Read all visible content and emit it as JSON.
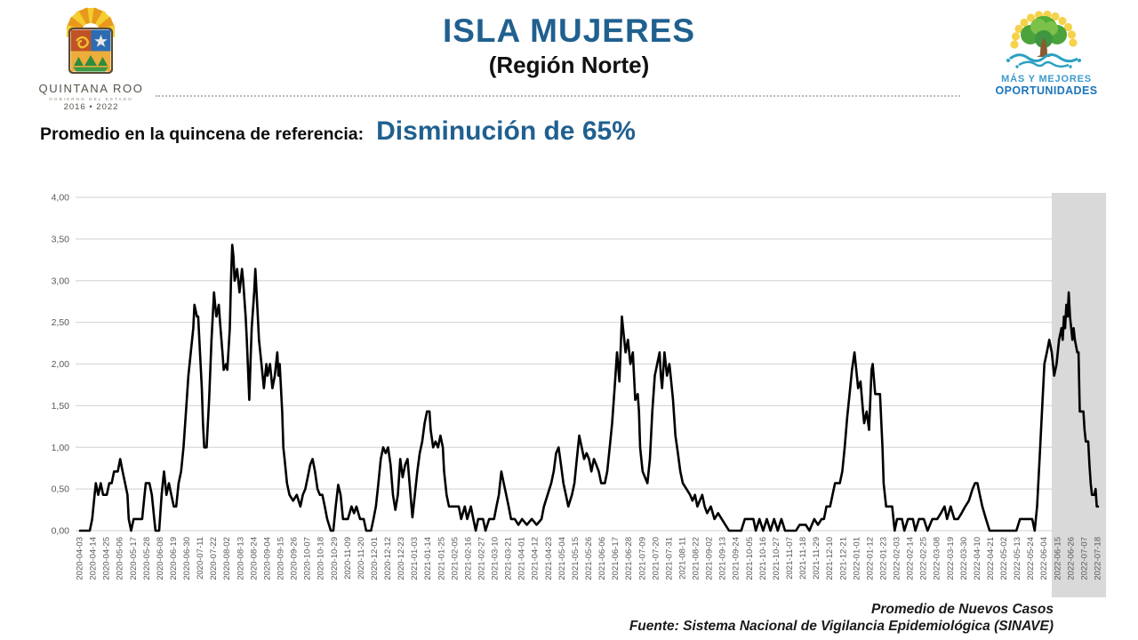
{
  "header": {
    "title": "ISLA MUJERES",
    "subtitle": "(Región Norte)",
    "left_logo": {
      "name": "Quintana Roo state coat of arms",
      "line1": "QUINTANA ROO",
      "line2": "GOBIERNO DEL ESTADO",
      "line3": "2016 • 2022"
    },
    "right_logo": {
      "name": "Mas y Mejores Oportunidades tree logo",
      "line1": "MÁS Y MEJORES",
      "line2": "OPORTUNIDADES"
    }
  },
  "summary": {
    "label": "Promedio en la quincena de referencia:",
    "value": "Disminución de 65%"
  },
  "footer": {
    "line1": "Promedio de Nuevos Casos",
    "line2": "Fuente: Sistema Nacional de Vigilancia Epidemiológica (SINAVE)"
  },
  "colors": {
    "title_blue": "#20608F",
    "accent_blue": "#20608F",
    "axis_text": "#595959",
    "gridline": "#D9D9D9",
    "band": "#D9D9D9",
    "line": "#000000"
  },
  "chart_data": {
    "type": "line",
    "title": "Promedio de Nuevos Casos",
    "xlabel": "",
    "ylabel": "",
    "ylim": [
      0,
      4
    ],
    "grid": "horizontal",
    "legend": "none",
    "x_unit": "days since 2020-04-03",
    "x_tick_interval_days": 11,
    "y_ticks": [
      "0,00",
      "0,50",
      "1,00",
      "1,50",
      "2,00",
      "2,50",
      "3,00",
      "3,50",
      "4,00"
    ],
    "highlight_band": {
      "start_day": 798,
      "end_day": 839,
      "meaning": "quincena de referencia"
    },
    "x_tick_labels": [
      "2020-04-03",
      "2020-04-14",
      "2020-04-25",
      "2020-05-06",
      "2020-05-17",
      "2020-05-28",
      "2020-06-08",
      "2020-06-19",
      "2020-06-30",
      "2020-07-11",
      "2020-07-22",
      "2020-08-02",
      "2020-08-13",
      "2020-08-24",
      "2020-09-04",
      "2020-09-15",
      "2020-09-26",
      "2020-10-07",
      "2020-10-18",
      "2020-10-29",
      "2020-11-09",
      "2020-11-20",
      "2020-12-01",
      "2020-12-12",
      "2020-12-23",
      "2021-01-03",
      "2021-01-14",
      "2021-01-25",
      "2021-02-05",
      "2021-02-16",
      "2021-02-27",
      "2021-03-10",
      "2021-03-21",
      "2021-04-01",
      "2021-04-12",
      "2021-04-23",
      "2021-05-04",
      "2021-05-15",
      "2021-05-26",
      "2021-06-06",
      "2021-06-17",
      "2021-06-28",
      "2021-07-09",
      "2021-07-20",
      "2021-07-31",
      "2021-08-11",
      "2021-08-22",
      "2021-09-02",
      "2021-09-13",
      "2021-09-24",
      "2021-10-05",
      "2021-10-16",
      "2021-10-27",
      "2021-11-07",
      "2021-11-18",
      "2021-11-29",
      "2021-12-10",
      "2021-12-21",
      "2022-01-01",
      "2022-01-12",
      "2022-01-23",
      "2022-02-03",
      "2022-02-14",
      "2022-02-25",
      "2022-03-08",
      "2022-03-19",
      "2022-03-30",
      "2022-04-10",
      "2022-04-21",
      "2022-05-02",
      "2022-05-13",
      "2022-05-24",
      "2022-06-04",
      "2022-06-15",
      "2022-06-26",
      "2022-07-07",
      "2022-07-18"
    ],
    "points": [
      [
        0,
        0
      ],
      [
        8,
        0
      ],
      [
        10,
        0.14
      ],
      [
        12,
        0.43
      ],
      [
        13,
        0.57
      ],
      [
        15,
        0.43
      ],
      [
        17,
        0.57
      ],
      [
        19,
        0.43
      ],
      [
        22,
        0.43
      ],
      [
        24,
        0.57
      ],
      [
        26,
        0.57
      ],
      [
        28,
        0.71
      ],
      [
        31,
        0.71
      ],
      [
        33,
        0.86
      ],
      [
        35,
        0.71
      ],
      [
        37,
        0.57
      ],
      [
        39,
        0.43
      ],
      [
        40,
        0.14
      ],
      [
        42,
        0
      ],
      [
        44,
        0.14
      ],
      [
        51,
        0.14
      ],
      [
        53,
        0.43
      ],
      [
        54,
        0.57
      ],
      [
        57,
        0.57
      ],
      [
        59,
        0.43
      ],
      [
        61,
        0.14
      ],
      [
        62,
        0
      ],
      [
        65,
        0
      ],
      [
        67,
        0.43
      ],
      [
        68,
        0.57
      ],
      [
        69,
        0.71
      ],
      [
        71,
        0.43
      ],
      [
        73,
        0.57
      ],
      [
        75,
        0.43
      ],
      [
        77,
        0.29
      ],
      [
        79,
        0.29
      ],
      [
        81,
        0.57
      ],
      [
        83,
        0.71
      ],
      [
        85,
        1.0
      ],
      [
        87,
        1.43
      ],
      [
        89,
        1.86
      ],
      [
        91,
        2.14
      ],
      [
        93,
        2.43
      ],
      [
        94,
        2.71
      ],
      [
        96,
        2.57
      ],
      [
        97,
        2.57
      ],
      [
        99,
        2.0
      ],
      [
        100,
        1.71
      ],
      [
        101,
        1.29
      ],
      [
        102,
        1.0
      ],
      [
        104,
        1.0
      ],
      [
        106,
        1.57
      ],
      [
        108,
        2.29
      ],
      [
        110,
        2.86
      ],
      [
        111,
        2.71
      ],
      [
        112,
        2.57
      ],
      [
        114,
        2.71
      ],
      [
        115,
        2.5
      ],
      [
        117,
        2.14
      ],
      [
        118,
        1.93
      ],
      [
        120,
        2.0
      ],
      [
        121,
        1.93
      ],
      [
        123,
        2.43
      ],
      [
        124,
        3.0
      ],
      [
        125,
        3.43
      ],
      [
        126,
        3.29
      ],
      [
        127,
        3.0
      ],
      [
        129,
        3.14
      ],
      [
        130,
        3.0
      ],
      [
        131,
        2.86
      ],
      [
        133,
        3.14
      ],
      [
        134,
        3.0
      ],
      [
        136,
        2.57
      ],
      [
        137,
        2.29
      ],
      [
        139,
        1.57
      ],
      [
        140,
        2.0
      ],
      [
        141,
        2.43
      ],
      [
        143,
        2.86
      ],
      [
        144,
        3.14
      ],
      [
        145,
        2.86
      ],
      [
        146,
        2.57
      ],
      [
        147,
        2.29
      ],
      [
        149,
        2.0
      ],
      [
        151,
        1.71
      ],
      [
        153,
        2.0
      ],
      [
        154,
        1.86
      ],
      [
        156,
        2.0
      ],
      [
        158,
        1.71
      ],
      [
        160,
        1.86
      ],
      [
        162,
        2.14
      ],
      [
        163,
        1.86
      ],
      [
        164,
        2.0
      ],
      [
        166,
        1.43
      ],
      [
        167,
        1.0
      ],
      [
        168,
        0.86
      ],
      [
        170,
        0.57
      ],
      [
        172,
        0.43
      ],
      [
        175,
        0.36
      ],
      [
        178,
        0.43
      ],
      [
        181,
        0.29
      ],
      [
        183,
        0.43
      ],
      [
        185,
        0.5
      ],
      [
        187,
        0.64
      ],
      [
        189,
        0.79
      ],
      [
        191,
        0.86
      ],
      [
        193,
        0.71
      ],
      [
        195,
        0.5
      ],
      [
        197,
        0.43
      ],
      [
        199,
        0.43
      ],
      [
        201,
        0.29
      ],
      [
        203,
        0.14
      ],
      [
        206,
        0
      ],
      [
        208,
        0
      ],
      [
        210,
        0.29
      ],
      [
        212,
        0.55
      ],
      [
        214,
        0.43
      ],
      [
        216,
        0.14
      ],
      [
        220,
        0.14
      ],
      [
        223,
        0.29
      ],
      [
        225,
        0.21
      ],
      [
        227,
        0.29
      ],
      [
        230,
        0.14
      ],
      [
        233,
        0.14
      ],
      [
        235,
        0
      ],
      [
        239,
        0
      ],
      [
        241,
        0.14
      ],
      [
        243,
        0.29
      ],
      [
        245,
        0.57
      ],
      [
        247,
        0.86
      ],
      [
        249,
        1.0
      ],
      [
        251,
        0.93
      ],
      [
        253,
        1.0
      ],
      [
        255,
        0.79
      ],
      [
        257,
        0.43
      ],
      [
        259,
        0.25
      ],
      [
        261,
        0.43
      ],
      [
        263,
        0.86
      ],
      [
        265,
        0.64
      ],
      [
        267,
        0.79
      ],
      [
        269,
        0.86
      ],
      [
        271,
        0.5
      ],
      [
        273,
        0.16
      ],
      [
        275,
        0.43
      ],
      [
        277,
        0.71
      ],
      [
        279,
        0.93
      ],
      [
        281,
        1.07
      ],
      [
        283,
        1.29
      ],
      [
        285,
        1.43
      ],
      [
        287,
        1.43
      ],
      [
        288,
        1.21
      ],
      [
        290,
        1.0
      ],
      [
        292,
        1.07
      ],
      [
        294,
        1.0
      ],
      [
        296,
        1.14
      ],
      [
        298,
        1.0
      ],
      [
        299,
        0.71
      ],
      [
        301,
        0.43
      ],
      [
        303,
        0.29
      ],
      [
        308,
        0.29
      ],
      [
        311,
        0.29
      ],
      [
        313,
        0.14
      ],
      [
        316,
        0.29
      ],
      [
        318,
        0.14
      ],
      [
        321,
        0.29
      ],
      [
        323,
        0.14
      ],
      [
        325,
        0
      ],
      [
        327,
        0.14
      ],
      [
        331,
        0.14
      ],
      [
        333,
        0
      ],
      [
        336,
        0.14
      ],
      [
        340,
        0.14
      ],
      [
        342,
        0.29
      ],
      [
        344,
        0.43
      ],
      [
        346,
        0.71
      ],
      [
        348,
        0.57
      ],
      [
        350,
        0.43
      ],
      [
        352,
        0.29
      ],
      [
        354,
        0.14
      ],
      [
        357,
        0.14
      ],
      [
        360,
        0.07
      ],
      [
        363,
        0.14
      ],
      [
        367,
        0.07
      ],
      [
        371,
        0.14
      ],
      [
        375,
        0.07
      ],
      [
        379,
        0.14
      ],
      [
        381,
        0.29
      ],
      [
        384,
        0.43
      ],
      [
        387,
        0.57
      ],
      [
        389,
        0.71
      ],
      [
        391,
        0.93
      ],
      [
        393,
        1.0
      ],
      [
        395,
        0.79
      ],
      [
        397,
        0.57
      ],
      [
        399,
        0.43
      ],
      [
        401,
        0.29
      ],
      [
        404,
        0.43
      ],
      [
        406,
        0.57
      ],
      [
        408,
        0.86
      ],
      [
        410,
        1.14
      ],
      [
        412,
        1.0
      ],
      [
        414,
        0.86
      ],
      [
        416,
        0.93
      ],
      [
        418,
        0.86
      ],
      [
        420,
        0.71
      ],
      [
        422,
        0.86
      ],
      [
        424,
        0.79
      ],
      [
        426,
        0.71
      ],
      [
        428,
        0.57
      ],
      [
        431,
        0.57
      ],
      [
        433,
        0.71
      ],
      [
        435,
        1.0
      ],
      [
        437,
        1.29
      ],
      [
        439,
        1.71
      ],
      [
        441,
        2.14
      ],
      [
        443,
        1.79
      ],
      [
        445,
        2.57
      ],
      [
        446,
        2.43
      ],
      [
        448,
        2.14
      ],
      [
        450,
        2.29
      ],
      [
        451,
        2.14
      ],
      [
        452,
        2.0
      ],
      [
        454,
        2.14
      ],
      [
        456,
        1.57
      ],
      [
        458,
        1.64
      ],
      [
        459,
        1.43
      ],
      [
        460,
        1.0
      ],
      [
        462,
        0.71
      ],
      [
        464,
        0.64
      ],
      [
        466,
        0.57
      ],
      [
        468,
        0.86
      ],
      [
        470,
        1.43
      ],
      [
        472,
        1.86
      ],
      [
        474,
        2.0
      ],
      [
        476,
        2.14
      ],
      [
        477,
        1.86
      ],
      [
        478,
        1.71
      ],
      [
        480,
        2.14
      ],
      [
        482,
        1.86
      ],
      [
        484,
        2.0
      ],
      [
        485,
        1.86
      ],
      [
        487,
        1.57
      ],
      [
        489,
        1.14
      ],
      [
        491,
        0.93
      ],
      [
        493,
        0.71
      ],
      [
        495,
        0.57
      ],
      [
        498,
        0.5
      ],
      [
        501,
        0.43
      ],
      [
        503,
        0.36
      ],
      [
        505,
        0.43
      ],
      [
        507,
        0.29
      ],
      [
        509,
        0.36
      ],
      [
        511,
        0.43
      ],
      [
        513,
        0.29
      ],
      [
        515,
        0.21
      ],
      [
        518,
        0.29
      ],
      [
        521,
        0.14
      ],
      [
        524,
        0.21
      ],
      [
        527,
        0.14
      ],
      [
        530,
        0.07
      ],
      [
        533,
        0
      ],
      [
        543,
        0
      ],
      [
        546,
        0.14
      ],
      [
        553,
        0.14
      ],
      [
        555,
        0
      ],
      [
        558,
        0.14
      ],
      [
        561,
        0
      ],
      [
        564,
        0.14
      ],
      [
        567,
        0
      ],
      [
        570,
        0.14
      ],
      [
        573,
        0
      ],
      [
        576,
        0.14
      ],
      [
        579,
        0
      ],
      [
        588,
        0
      ],
      [
        591,
        0.07
      ],
      [
        596,
        0.07
      ],
      [
        599,
        0
      ],
      [
        603,
        0.14
      ],
      [
        606,
        0.07
      ],
      [
        609,
        0.14
      ],
      [
        611,
        0.14
      ],
      [
        613,
        0.29
      ],
      [
        616,
        0.29
      ],
      [
        618,
        0.43
      ],
      [
        620,
        0.57
      ],
      [
        624,
        0.57
      ],
      [
        626,
        0.71
      ],
      [
        628,
        1.0
      ],
      [
        630,
        1.36
      ],
      [
        632,
        1.64
      ],
      [
        634,
        1.93
      ],
      [
        636,
        2.14
      ],
      [
        638,
        1.86
      ],
      [
        639,
        1.71
      ],
      [
        641,
        1.79
      ],
      [
        643,
        1.43
      ],
      [
        644,
        1.29
      ],
      [
        646,
        1.43
      ],
      [
        648,
        1.21
      ],
      [
        650,
        1.93
      ],
      [
        651,
        2.0
      ],
      [
        653,
        1.64
      ],
      [
        657,
        1.64
      ],
      [
        659,
        1.0
      ],
      [
        660,
        0.57
      ],
      [
        662,
        0.29
      ],
      [
        667,
        0.29
      ],
      [
        669,
        0
      ],
      [
        671,
        0.14
      ],
      [
        675,
        0.14
      ],
      [
        677,
        0
      ],
      [
        680,
        0.14
      ],
      [
        684,
        0.14
      ],
      [
        686,
        0
      ],
      [
        689,
        0.14
      ],
      [
        693,
        0.14
      ],
      [
        696,
        0
      ],
      [
        700,
        0.14
      ],
      [
        704,
        0.14
      ],
      [
        707,
        0.21
      ],
      [
        710,
        0.29
      ],
      [
        712,
        0.14
      ],
      [
        715,
        0.29
      ],
      [
        718,
        0.14
      ],
      [
        721,
        0.14
      ],
      [
        724,
        0.21
      ],
      [
        727,
        0.29
      ],
      [
        730,
        0.36
      ],
      [
        733,
        0.5
      ],
      [
        735,
        0.57
      ],
      [
        737,
        0.57
      ],
      [
        739,
        0.43
      ],
      [
        741,
        0.29
      ],
      [
        744,
        0.14
      ],
      [
        747,
        0
      ],
      [
        769,
        0
      ],
      [
        772,
        0.14
      ],
      [
        782,
        0.14
      ],
      [
        784,
        0
      ],
      [
        786,
        0.29
      ],
      [
        788,
        0.86
      ],
      [
        790,
        1.43
      ],
      [
        792,
        2.0
      ],
      [
        794,
        2.14
      ],
      [
        796,
        2.29
      ],
      [
        798,
        2.14
      ],
      [
        800,
        1.86
      ],
      [
        802,
        2.0
      ],
      [
        804,
        2.29
      ],
      [
        806,
        2.43
      ],
      [
        807,
        2.29
      ],
      [
        808,
        2.57
      ],
      [
        809,
        2.43
      ],
      [
        810,
        2.71
      ],
      [
        811,
        2.57
      ],
      [
        812,
        2.86
      ],
      [
        813,
        2.57
      ],
      [
        814,
        2.43
      ],
      [
        815,
        2.29
      ],
      [
        816,
        2.43
      ],
      [
        817,
        2.29
      ],
      [
        819,
        2.14
      ],
      [
        820,
        2.14
      ],
      [
        821,
        1.43
      ],
      [
        824,
        1.43
      ],
      [
        825,
        1.21
      ],
      [
        826,
        1.07
      ],
      [
        828,
        1.07
      ],
      [
        829,
        0.79
      ],
      [
        830,
        0.57
      ],
      [
        831,
        0.43
      ],
      [
        833,
        0.43
      ],
      [
        834,
        0.5
      ],
      [
        835,
        0.29
      ],
      [
        836,
        0.29
      ]
    ]
  }
}
